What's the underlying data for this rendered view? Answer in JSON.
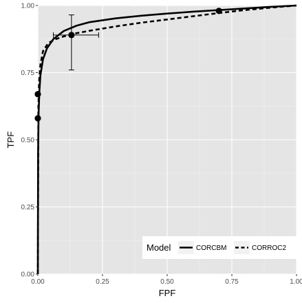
{
  "chart_data": {
    "type": "line",
    "xlabel": "FPF",
    "ylabel": "TPF",
    "xlim": [
      0,
      1
    ],
    "ylim": [
      0,
      1
    ],
    "x_ticks": [
      0,
      0.25,
      0.5,
      0.75,
      1
    ],
    "y_ticks": [
      0,
      0.25,
      0.5,
      0.75,
      1
    ],
    "x_tick_labels": [
      "0.00",
      "0.25",
      "0.50",
      "0.75",
      "1.00"
    ],
    "y_tick_labels": [
      "0.00",
      "0.25",
      "0.50",
      "0.75",
      "1.00"
    ],
    "grid": true,
    "background": "#e5e5e5",
    "legend": {
      "title": "Model",
      "placement": "bottom-right",
      "orientation": "horizontal"
    },
    "series": [
      {
        "name": "CORCBM",
        "linestyle": "solid",
        "color": "#000000",
        "x": [
          0,
          0.001,
          0.003,
          0.006,
          0.01,
          0.02,
          0.035,
          0.06,
          0.1,
          0.15,
          0.2,
          0.3,
          0.4,
          0.5,
          0.6,
          0.7,
          0.8,
          0.9,
          1.0
        ],
        "y": [
          0,
          0.45,
          0.6,
          0.68,
          0.74,
          0.8,
          0.84,
          0.875,
          0.905,
          0.925,
          0.938,
          0.952,
          0.962,
          0.97,
          0.977,
          0.983,
          0.989,
          0.995,
          1.0
        ]
      },
      {
        "name": "CORROC2",
        "linestyle": "dashed",
        "color": "#000000",
        "x": [
          0,
          0.002,
          0.005,
          0.01,
          0.02,
          0.04,
          0.07,
          0.1,
          0.15,
          0.2,
          0.3,
          0.4,
          0.5,
          0.6,
          0.7,
          0.8,
          0.9,
          1.0
        ],
        "y": [
          0,
          0.62,
          0.72,
          0.78,
          0.83,
          0.86,
          0.875,
          0.885,
          0.897,
          0.906,
          0.922,
          0.936,
          0.948,
          0.96,
          0.972,
          0.983,
          0.992,
          1.0
        ]
      }
    ],
    "points": [
      {
        "x": 0.0,
        "y": 0.67
      },
      {
        "x": 0.0,
        "y": 0.58
      },
      {
        "x": 0.13,
        "y": 0.89,
        "xerr": [
          0.06,
          0.235
        ],
        "yerr": [
          0.76,
          0.965
        ]
      },
      {
        "x": 0.7,
        "y": 0.98
      }
    ]
  }
}
